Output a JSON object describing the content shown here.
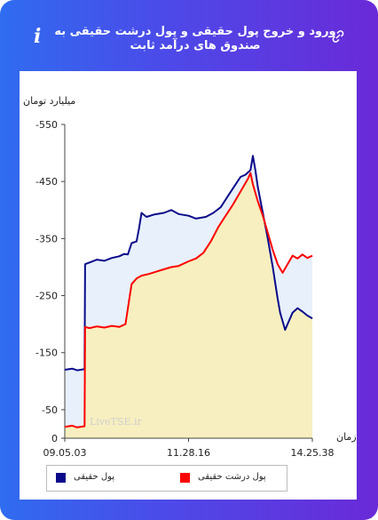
{
  "header": {
    "title": "ورود و خروج پول حقیقی و پول درشت حقیقی به صندوق های درآمد ثابت",
    "link_icon": "link-icon",
    "info_icon": "info-icon",
    "info_glyph": "i"
  },
  "colors": {
    "series_real": "#0a0a8a",
    "series_large": "#ff0000",
    "fill_top": "#f7efbf",
    "fill_between": "#e8f0fb",
    "frame_start": "#2f6cf0",
    "frame_end": "#6a2ad8"
  },
  "watermark": "LiveTSE.ir",
  "chart_data": {
    "type": "line",
    "ylabel": "میلیارد تومان",
    "xlabel": "زمان",
    "ylim": [
      -550,
      0
    ],
    "yticks": [
      0,
      -50,
      -150,
      -250,
      -350,
      -450,
      -550
    ],
    "xticks": [
      "09.05.03",
      "11.28.16",
      "14.25.38"
    ],
    "x_fraction_range": [
      0,
      1
    ],
    "series": [
      {
        "name": "پول حقیقی",
        "color": "#0a0a8a",
        "points": [
          [
            0.0,
            -120
          ],
          [
            0.03,
            -122
          ],
          [
            0.05,
            -119
          ],
          [
            0.08,
            -121
          ],
          [
            0.082,
            -305
          ],
          [
            0.1,
            -308
          ],
          [
            0.13,
            -313
          ],
          [
            0.16,
            -311
          ],
          [
            0.19,
            -316
          ],
          [
            0.22,
            -319
          ],
          [
            0.24,
            -323
          ],
          [
            0.255,
            -322
          ],
          [
            0.27,
            -342
          ],
          [
            0.29,
            -345
          ],
          [
            0.3,
            -368
          ],
          [
            0.31,
            -395
          ],
          [
            0.33,
            -388
          ],
          [
            0.36,
            -392
          ],
          [
            0.4,
            -395
          ],
          [
            0.43,
            -400
          ],
          [
            0.46,
            -393
          ],
          [
            0.5,
            -390
          ],
          [
            0.53,
            -385
          ],
          [
            0.57,
            -388
          ],
          [
            0.6,
            -395
          ],
          [
            0.63,
            -405
          ],
          [
            0.66,
            -425
          ],
          [
            0.69,
            -445
          ],
          [
            0.71,
            -458
          ],
          [
            0.73,
            -462
          ],
          [
            0.75,
            -470
          ],
          [
            0.76,
            -495
          ],
          [
            0.77,
            -470
          ],
          [
            0.78,
            -440
          ],
          [
            0.8,
            -395
          ],
          [
            0.82,
            -350
          ],
          [
            0.84,
            -300
          ],
          [
            0.86,
            -245
          ],
          [
            0.87,
            -220
          ],
          [
            0.88,
            -205
          ],
          [
            0.89,
            -190
          ],
          [
            0.9,
            -200
          ],
          [
            0.92,
            -220
          ],
          [
            0.94,
            -228
          ],
          [
            0.96,
            -222
          ],
          [
            0.98,
            -215
          ],
          [
            1.0,
            -210
          ]
        ]
      },
      {
        "name": "پول درشت حقیقی",
        "color": "#ff0000",
        "points": [
          [
            0.0,
            -20
          ],
          [
            0.03,
            -22
          ],
          [
            0.05,
            -19
          ],
          [
            0.08,
            -21
          ],
          [
            0.082,
            -195
          ],
          [
            0.1,
            -193
          ],
          [
            0.13,
            -196
          ],
          [
            0.16,
            -194
          ],
          [
            0.19,
            -197
          ],
          [
            0.22,
            -195
          ],
          [
            0.245,
            -200
          ],
          [
            0.27,
            -270
          ],
          [
            0.29,
            -280
          ],
          [
            0.31,
            -285
          ],
          [
            0.34,
            -288
          ],
          [
            0.37,
            -292
          ],
          [
            0.4,
            -296
          ],
          [
            0.43,
            -300
          ],
          [
            0.46,
            -302
          ],
          [
            0.5,
            -310
          ],
          [
            0.53,
            -315
          ],
          [
            0.56,
            -325
          ],
          [
            0.59,
            -345
          ],
          [
            0.62,
            -370
          ],
          [
            0.65,
            -390
          ],
          [
            0.68,
            -410
          ],
          [
            0.7,
            -425
          ],
          [
            0.72,
            -440
          ],
          [
            0.74,
            -455
          ],
          [
            0.75,
            -465
          ],
          [
            0.76,
            -445
          ],
          [
            0.78,
            -415
          ],
          [
            0.8,
            -390
          ],
          [
            0.82,
            -360
          ],
          [
            0.84,
            -330
          ],
          [
            0.86,
            -305
          ],
          [
            0.88,
            -290
          ],
          [
            0.9,
            -305
          ],
          [
            0.92,
            -320
          ],
          [
            0.94,
            -315
          ],
          [
            0.96,
            -322
          ],
          [
            0.98,
            -316
          ],
          [
            1.0,
            -320
          ]
        ]
      }
    ]
  }
}
